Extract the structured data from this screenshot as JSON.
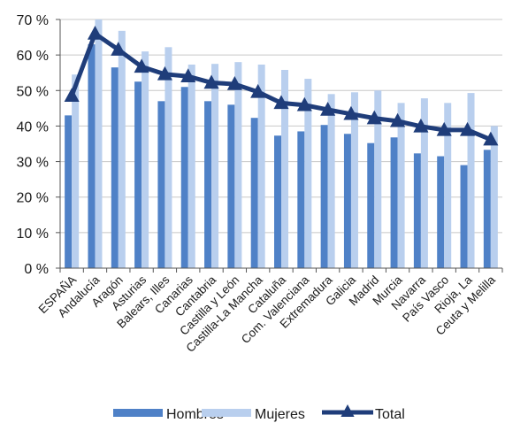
{
  "chart_data": {
    "type": "bar",
    "categories": [
      "ESPAÑA",
      "Andalucía",
      "Aragón",
      "Asturias",
      "Balears, Illes",
      "Canarias",
      "Cantabria",
      "Castilla y León",
      "Castilla-La Mancha",
      "Cataluña",
      "Com. Valenciana",
      "Extremadura",
      "Galicia",
      "Madrid",
      "Murcia",
      "Navarra",
      "País Vasco",
      "Rioja, La",
      "Ceuta y Melilla"
    ],
    "series": [
      {
        "name": "Hombres",
        "type": "bar",
        "color": "#4f81c7",
        "values": [
          43,
          63,
          56.5,
          52.5,
          47,
          51,
          47,
          46,
          42.3,
          37.3,
          38.5,
          40.3,
          37.8,
          35.2,
          36.8,
          32.3,
          31.5,
          29,
          33.3
        ]
      },
      {
        "name": "Mujeres",
        "type": "bar",
        "color": "#b9cfee",
        "values": [
          54.5,
          70,
          66.8,
          61,
          62.2,
          57.3,
          57.5,
          58,
          57.3,
          55.8,
          53.3,
          49,
          49.5,
          50,
          46.5,
          47.8,
          46.5,
          49.3,
          40
        ]
      },
      {
        "name": "Total",
        "type": "line",
        "color": "#1f3d7a",
        "marker": "triangle",
        "values": [
          48.5,
          66,
          61.5,
          56.7,
          54.6,
          54,
          52.2,
          51.8,
          49.6,
          46.5,
          45.9,
          44.6,
          43.4,
          42.2,
          41.4,
          39.9,
          38.9,
          38.9,
          36.2
        ]
      }
    ],
    "ylim": [
      0,
      70
    ],
    "yticks": [
      "0 %",
      "10 %",
      "20 %",
      "30 %",
      "40 %",
      "50 %",
      "60 %",
      "70 %"
    ],
    "ytick_values": [
      0,
      10,
      20,
      30,
      40,
      50,
      60,
      70
    ],
    "grid": true,
    "legend": "bottom",
    "title": "",
    "xlabel": "",
    "ylabel": ""
  }
}
